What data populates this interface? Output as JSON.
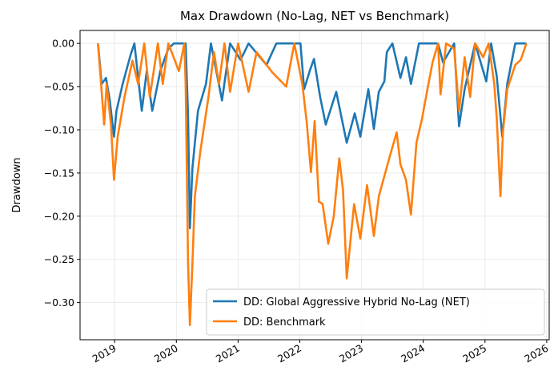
{
  "chart_data": {
    "type": "line",
    "title": "Max Drawdown (No-Lag, NET vs Benchmark)",
    "xlabel": "",
    "ylabel": "Drawdown",
    "xlim": [
      2018.44,
      2026.04
    ],
    "ylim": [
      -0.343,
      0.015
    ],
    "grid": true,
    "legend_position": "lower-right",
    "x_ticks": [
      2019,
      2020,
      2021,
      2022,
      2023,
      2024,
      2025,
      2026
    ],
    "x_tick_labels": [
      "2019",
      "2020",
      "2021",
      "2022",
      "2023",
      "2024",
      "2025",
      "2026"
    ],
    "y_ticks": [
      0,
      -0.05,
      -0.1,
      -0.15,
      -0.2,
      -0.25,
      -0.3
    ],
    "y_tick_labels": [
      "0.00",
      "−0.05",
      "−0.10",
      "−0.15",
      "−0.20",
      "−0.25",
      "−0.30"
    ],
    "series": [
      {
        "name": "DD: Global Aggressive Hybrid No-Lag (NET)",
        "color": "#1f77b4",
        "x": [
          2018.73,
          2018.79,
          2018.86,
          2018.92,
          2018.99,
          2019.03,
          2019.13,
          2019.26,
          2019.32,
          2019.44,
          2019.52,
          2019.61,
          2019.74,
          2019.87,
          2019.96,
          2020.15,
          2020.19,
          2020.22,
          2020.26,
          2020.35,
          2020.48,
          2020.56,
          2020.74,
          2020.87,
          2021.04,
          2021.17,
          2021.46,
          2021.62,
          2022.01,
          2022.07,
          2022.16,
          2022.23,
          2022.33,
          2022.42,
          2022.59,
          2022.76,
          2022.89,
          2022.98,
          2023.11,
          2023.2,
          2023.28,
          2023.37,
          2023.41,
          2023.5,
          2023.63,
          2023.72,
          2023.8,
          2023.93,
          2024.24,
          2024.32,
          2024.5,
          2024.58,
          2024.67,
          2024.76,
          2024.84,
          2025.02,
          2025.1,
          2025.19,
          2025.28,
          2025.36,
          2025.49,
          2025.67
        ],
        "y": [
          0,
          -0.047,
          -0.04,
          -0.065,
          -0.108,
          -0.078,
          -0.047,
          -0.013,
          0,
          -0.078,
          -0.032,
          -0.078,
          -0.032,
          -0.006,
          0,
          0,
          -0.084,
          -0.214,
          -0.145,
          -0.078,
          -0.047,
          0,
          -0.066,
          0,
          -0.019,
          0,
          -0.025,
          0,
          0,
          -0.053,
          -0.032,
          -0.018,
          -0.062,
          -0.094,
          -0.056,
          -0.115,
          -0.081,
          -0.108,
          -0.053,
          -0.099,
          -0.056,
          -0.044,
          -0.01,
          0,
          -0.04,
          -0.016,
          -0.047,
          0,
          0,
          -0.022,
          0,
          -0.096,
          -0.053,
          -0.025,
          0,
          -0.044,
          0,
          -0.038,
          -0.108,
          -0.047,
          0,
          0
        ]
      },
      {
        "name": "DD: Benchmark",
        "color": "#ff7f0e",
        "x": [
          2018.73,
          2018.79,
          2018.83,
          2018.87,
          2018.94,
          2018.99,
          2019.05,
          2019.16,
          2019.29,
          2019.38,
          2019.48,
          2019.57,
          2019.7,
          2019.78,
          2019.87,
          2020.04,
          2020.13,
          2020.15,
          2020.19,
          2020.22,
          2020.26,
          2020.3,
          2020.39,
          2020.52,
          2020.61,
          2020.69,
          2020.78,
          2020.87,
          2021.0,
          2021.17,
          2021.3,
          2021.56,
          2021.78,
          2021.91,
          2022.04,
          2022.11,
          2022.18,
          2022.24,
          2022.31,
          2022.37,
          2022.46,
          2022.55,
          2022.64,
          2022.7,
          2022.76,
          2022.88,
          2022.98,
          2023.09,
          2023.2,
          2023.28,
          2023.46,
          2023.57,
          2023.63,
          2023.72,
          2023.8,
          2023.89,
          2023.98,
          2024.06,
          2024.15,
          2024.24,
          2024.28,
          2024.37,
          2024.5,
          2024.58,
          2024.67,
          2024.76,
          2024.84,
          2024.97,
          2025.06,
          2025.15,
          2025.19,
          2025.25,
          2025.29,
          2025.36,
          2025.49,
          2025.58,
          2025.67
        ],
        "y": [
          0,
          -0.056,
          -0.094,
          -0.047,
          -0.094,
          -0.158,
          -0.108,
          -0.062,
          -0.02,
          -0.047,
          0,
          -0.062,
          0,
          -0.047,
          0,
          -0.032,
          0,
          -0.047,
          -0.254,
          -0.326,
          -0.256,
          -0.177,
          -0.124,
          -0.062,
          -0.01,
          -0.047,
          0,
          -0.056,
          0,
          -0.056,
          -0.01,
          -0.034,
          -0.05,
          0,
          -0.047,
          -0.09,
          -0.149,
          -0.09,
          -0.183,
          -0.186,
          -0.232,
          -0.2,
          -0.133,
          -0.17,
          -0.272,
          -0.186,
          -0.226,
          -0.164,
          -0.223,
          -0.177,
          -0.13,
          -0.103,
          -0.14,
          -0.158,
          -0.198,
          -0.115,
          -0.087,
          -0.056,
          -0.022,
          0,
          -0.059,
          0,
          -0.006,
          -0.078,
          -0.016,
          -0.062,
          0,
          -0.016,
          0,
          -0.047,
          -0.087,
          -0.177,
          -0.103,
          -0.053,
          -0.025,
          -0.019,
          0
        ]
      }
    ]
  }
}
